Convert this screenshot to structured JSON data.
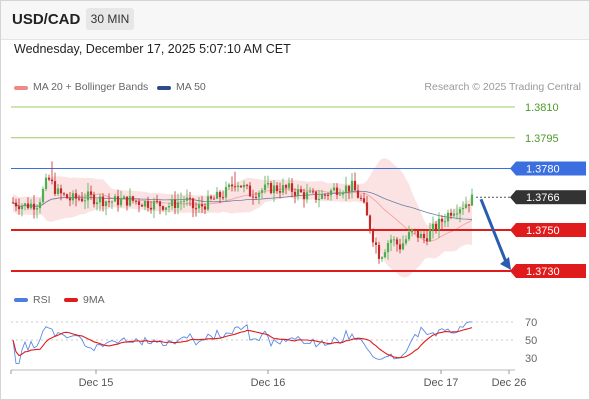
{
  "header": {
    "symbol": "USD/CAD",
    "timeframe": "30 MIN"
  },
  "datetime": "Wednesday, December 17, 2025 5:07:10 AM CET",
  "legend": {
    "ma20": {
      "label": "MA 20 + Bollinger Bands",
      "color": "#f08a8a"
    },
    "ma50": {
      "label": "MA 50",
      "color": "#2b4b8c"
    }
  },
  "credit": "Research © 2025 Trading Central",
  "rsi_legend": {
    "rsi": {
      "label": "RSI",
      "color": "#4a7fe0"
    },
    "ma9": {
      "label": "9MA",
      "color": "#e01b1b"
    }
  },
  "chart_data": [
    {
      "type": "candlestick",
      "title": "USD/CAD",
      "timeframe": "30 MIN",
      "x_ticks": [
        "Dec 15",
        "Dec 16",
        "Dec 17",
        "Dec 26"
      ],
      "levels": [
        {
          "value": 1.381,
          "label": "1.3810",
          "kind": "resistance",
          "color": "#9ccc65"
        },
        {
          "value": 1.3795,
          "label": "1.3795",
          "kind": "resistance",
          "color": "#9ccc65"
        },
        {
          "value": 1.378,
          "label": "1.3780",
          "kind": "pivot",
          "color": "#3b6fe0"
        },
        {
          "value": 1.3766,
          "label": "1.3766",
          "kind": "last",
          "color": "#333333"
        },
        {
          "value": 1.375,
          "label": "1.3750",
          "kind": "support",
          "color": "#e01b1b"
        },
        {
          "value": 1.373,
          "label": "1.3730",
          "kind": "target",
          "color": "#e01b1b"
        }
      ],
      "last_price": 1.3766,
      "forecast": {
        "from": 1.3765,
        "to": 1.373,
        "direction": "down"
      },
      "series": [
        {
          "name": "MA 20 + Bollinger Bands"
        },
        {
          "name": "MA 50"
        }
      ],
      "ylim": [
        1.3722,
        1.3825
      ]
    },
    {
      "type": "line",
      "title": "RSI",
      "series": [
        {
          "name": "RSI"
        },
        {
          "name": "9MA"
        }
      ],
      "y_ticks": [
        "70",
        "50",
        "30"
      ],
      "ylim": [
        20,
        80
      ]
    }
  ]
}
